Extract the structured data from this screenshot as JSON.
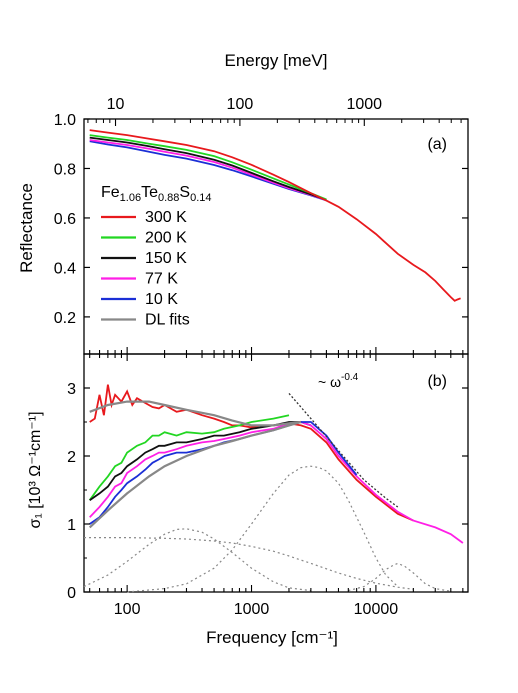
{
  "chart_data": [
    {
      "type": "line",
      "panel_label": "(a)",
      "ylabel": "Reflectance",
      "top_axis": {
        "label": "Energy [meV]",
        "ticks": [
          "10",
          "100",
          "1000"
        ],
        "tick_values_cm": [
          80.65,
          806.5,
          8065
        ]
      },
      "x_scale": "log",
      "xlim": [
        45,
        55000
      ],
      "ylim": [
        0.05,
        1.0
      ],
      "yticks": [
        "0.2",
        "0.4",
        "0.6",
        "0.8",
        "1.0"
      ],
      "ytick_values": [
        0.2,
        0.4,
        0.6,
        0.8,
        1.0
      ],
      "legend": {
        "placement": "left",
        "title": {
          "base": "Fe",
          "sub1": "1.06",
          "mid": "Te",
          "sub2": "0.88",
          "end": "S",
          "sub3": "0.14"
        },
        "items": [
          "300 K",
          "200 K",
          "150 K",
          "77 K",
          "10 K",
          "DL fits"
        ]
      },
      "series": [
        {
          "name": "300 K",
          "color": "#e8191d",
          "x": [
            50,
            70,
            100,
            150,
            200,
            300,
            500,
            700,
            1000,
            1500,
            2000,
            3000,
            4000,
            5000,
            7000,
            10000,
            15000,
            20000,
            25000,
            30000,
            35000,
            40000,
            43000,
            45000,
            48000
          ],
          "y": [
            0.955,
            0.945,
            0.935,
            0.92,
            0.91,
            0.895,
            0.87,
            0.845,
            0.815,
            0.775,
            0.745,
            0.7,
            0.67,
            0.645,
            0.595,
            0.535,
            0.455,
            0.41,
            0.38,
            0.345,
            0.31,
            0.28,
            0.265,
            0.27,
            0.275
          ]
        },
        {
          "name": "200 K",
          "color": "#22d622",
          "x": [
            50,
            70,
            100,
            150,
            200,
            300,
            500,
            700,
            1000,
            1500,
            2000,
            3000,
            4000
          ],
          "y": [
            0.935,
            0.925,
            0.915,
            0.9,
            0.89,
            0.875,
            0.85,
            0.825,
            0.795,
            0.76,
            0.735,
            0.7,
            0.675
          ]
        },
        {
          "name": "150 K",
          "color": "#111111",
          "x": [
            50,
            70,
            100,
            150,
            200,
            300,
            500,
            700,
            1000,
            1500,
            2000,
            3000,
            4000
          ],
          "y": [
            0.925,
            0.915,
            0.905,
            0.89,
            0.878,
            0.862,
            0.835,
            0.812,
            0.782,
            0.748,
            0.725,
            0.695,
            0.673
          ]
        },
        {
          "name": "77 K",
          "color": "#ff1fe6",
          "x": [
            50,
            70,
            100,
            150,
            200,
            300,
            500,
            700,
            1000,
            1500,
            2000,
            3000,
            4000
          ],
          "y": [
            0.915,
            0.905,
            0.895,
            0.88,
            0.868,
            0.852,
            0.826,
            0.803,
            0.775,
            0.742,
            0.72,
            0.693,
            0.672
          ]
        },
        {
          "name": "10 K",
          "color": "#1b2fd6",
          "x": [
            50,
            70,
            100,
            150,
            200,
            300,
            500,
            700,
            1000,
            1500,
            2000,
            3000,
            4000
          ],
          "y": [
            0.91,
            0.897,
            0.885,
            0.868,
            0.855,
            0.84,
            0.814,
            0.793,
            0.768,
            0.738,
            0.717,
            0.691,
            0.671
          ]
        }
      ]
    },
    {
      "type": "line",
      "panel_label": "(b)",
      "xlabel": "Frequency [cm⁻¹]",
      "ylabel": "σ₁ [10³ Ω⁻¹cm⁻¹]",
      "x_scale": "log",
      "xlim": [
        45,
        55000
      ],
      "ylim": [
        0,
        3.5
      ],
      "xticks": [
        "100",
        "1000",
        "10000"
      ],
      "xtick_values": [
        100,
        1000,
        10000
      ],
      "yticks": [
        "0",
        "1",
        "2",
        "3"
      ],
      "ytick_values": [
        0,
        1,
        2,
        3
      ],
      "annotation": {
        "text": "~ ω",
        "sup": "-0.4"
      },
      "series": [
        {
          "name": "300 K",
          "color": "#e8191d",
          "x": [
            50,
            55,
            60,
            65,
            70,
            75,
            80,
            90,
            100,
            110,
            120,
            140,
            160,
            180,
            200,
            250,
            300,
            400,
            500,
            600,
            700,
            800,
            1000,
            1200,
            1500,
            2000,
            2500,
            3000,
            4000,
            5000,
            7000,
            10000,
            15000,
            20000
          ],
          "y": [
            2.5,
            2.55,
            2.9,
            2.6,
            3.05,
            2.75,
            2.9,
            2.8,
            2.95,
            2.75,
            2.85,
            2.78,
            2.72,
            2.7,
            2.75,
            2.65,
            2.68,
            2.6,
            2.55,
            2.5,
            2.45,
            2.45,
            2.42,
            2.45,
            2.45,
            2.48,
            2.45,
            2.4,
            2.2,
            1.95,
            1.65,
            1.4,
            1.15,
            1.05
          ]
        },
        {
          "name": "200 K",
          "color": "#22d622",
          "x": [
            50,
            60,
            70,
            80,
            90,
            100,
            120,
            140,
            160,
            180,
            200,
            250,
            300,
            400,
            500,
            600,
            800,
            1000,
            1500,
            2000
          ],
          "y": [
            1.35,
            1.55,
            1.7,
            1.85,
            1.9,
            2.05,
            2.15,
            2.2,
            2.3,
            2.3,
            2.35,
            2.3,
            2.35,
            2.33,
            2.35,
            2.4,
            2.45,
            2.5,
            2.55,
            2.6
          ]
        },
        {
          "name": "150 K",
          "color": "#111111",
          "x": [
            50,
            60,
            70,
            80,
            90,
            100,
            120,
            140,
            160,
            180,
            200,
            250,
            300,
            400,
            500,
            600,
            800,
            1000,
            1500,
            2000,
            2500,
            3000
          ],
          "y": [
            1.35,
            1.45,
            1.55,
            1.7,
            1.75,
            1.85,
            1.95,
            2.05,
            2.1,
            2.15,
            2.15,
            2.2,
            2.2,
            2.25,
            2.3,
            2.3,
            2.35,
            2.4,
            2.45,
            2.5,
            2.5,
            2.45
          ]
        },
        {
          "name": "77 K",
          "color": "#ff1fe6",
          "x": [
            50,
            60,
            70,
            80,
            90,
            100,
            120,
            140,
            160,
            180,
            200,
            250,
            300,
            400,
            500,
            600,
            800,
            1000,
            1500,
            2000,
            2500,
            3000,
            4000,
            5000,
            7000,
            10000,
            15000,
            20000,
            30000,
            40000,
            50000
          ],
          "y": [
            1.1,
            1.25,
            1.4,
            1.55,
            1.6,
            1.75,
            1.85,
            1.95,
            2.0,
            2.05,
            2.05,
            2.1,
            2.15,
            2.2,
            2.22,
            2.25,
            2.3,
            2.35,
            2.4,
            2.48,
            2.5,
            2.45,
            2.25,
            2.0,
            1.7,
            1.43,
            1.18,
            1.05,
            0.95,
            0.85,
            0.72
          ]
        },
        {
          "name": "10 K",
          "color": "#1b2fd6",
          "x": [
            50,
            60,
            70,
            80,
            90,
            100,
            120,
            140,
            160,
            180,
            200,
            250,
            300,
            400,
            500,
            600,
            800,
            1000,
            1500,
            2000,
            2500,
            3000,
            4000,
            5000,
            7000
          ],
          "y": [
            1.0,
            1.1,
            1.25,
            1.4,
            1.5,
            1.6,
            1.7,
            1.8,
            1.9,
            1.95,
            2.0,
            2.05,
            2.05,
            2.1,
            2.15,
            2.2,
            2.25,
            2.3,
            2.38,
            2.45,
            2.5,
            2.5,
            2.3,
            2.05,
            1.72
          ]
        }
      ],
      "fits": [
        {
          "name": "DL fits",
          "color": "#888888",
          "x": [
            50,
            70,
            100,
            150,
            200,
            300,
            500,
            700,
            1000,
            1500,
            2000,
            2500
          ],
          "y": [
            2.65,
            2.75,
            2.8,
            2.8,
            2.75,
            2.68,
            2.6,
            2.52,
            2.45,
            2.45,
            2.48,
            2.5
          ]
        },
        {
          "name": "DL fits",
          "color": "#888888",
          "x": [
            50,
            70,
            100,
            150,
            200,
            300,
            500,
            700,
            1000,
            1500,
            2000,
            2500
          ],
          "y": [
            0.95,
            1.2,
            1.45,
            1.7,
            1.85,
            2.0,
            2.15,
            2.22,
            2.3,
            2.38,
            2.45,
            2.5
          ]
        }
      ],
      "components": [
        {
          "color": "#888888",
          "x": [
            45,
            100,
            200,
            300,
            500,
            700,
            1000,
            1500,
            2000,
            3000,
            5000,
            7000,
            10000,
            15000,
            20000
          ],
          "y": [
            0.8,
            0.8,
            0.79,
            0.78,
            0.75,
            0.72,
            0.67,
            0.6,
            0.53,
            0.42,
            0.28,
            0.2,
            0.13,
            0.07,
            0.04
          ]
        },
        {
          "color": "#888888",
          "x": [
            45,
            70,
            100,
            150,
            200,
            250,
            300,
            400,
            500,
            700,
            1000,
            1500,
            2000,
            3000
          ],
          "y": [
            0.08,
            0.25,
            0.45,
            0.7,
            0.85,
            0.92,
            0.93,
            0.88,
            0.78,
            0.58,
            0.35,
            0.15,
            0.06,
            0.02
          ]
        },
        {
          "color": "#888888",
          "x": [
            100,
            200,
            300,
            500,
            700,
            1000,
            1500,
            2000,
            2500,
            3000,
            3500,
            4000,
            5000,
            6000,
            7000,
            8000,
            10000,
            12000,
            15000
          ],
          "y": [
            0.0,
            0.05,
            0.12,
            0.35,
            0.62,
            1.0,
            1.45,
            1.72,
            1.83,
            1.85,
            1.83,
            1.78,
            1.6,
            1.35,
            1.1,
            0.88,
            0.5,
            0.25,
            0.08
          ]
        },
        {
          "color": "#888888",
          "x": [
            6000,
            8000,
            10000,
            12000,
            14000,
            15000,
            17000,
            20000,
            25000,
            30000,
            40000
          ],
          "y": [
            0.02,
            0.08,
            0.2,
            0.33,
            0.4,
            0.42,
            0.38,
            0.28,
            0.12,
            0.05,
            0.01
          ]
        }
      ],
      "power_law": {
        "color": "#333333",
        "x": [
          2000,
          3000,
          5000,
          8000,
          12000,
          15000
        ],
        "y": [
          2.92,
          2.55,
          2.08,
          1.65,
          1.38,
          1.25
        ]
      }
    }
  ]
}
